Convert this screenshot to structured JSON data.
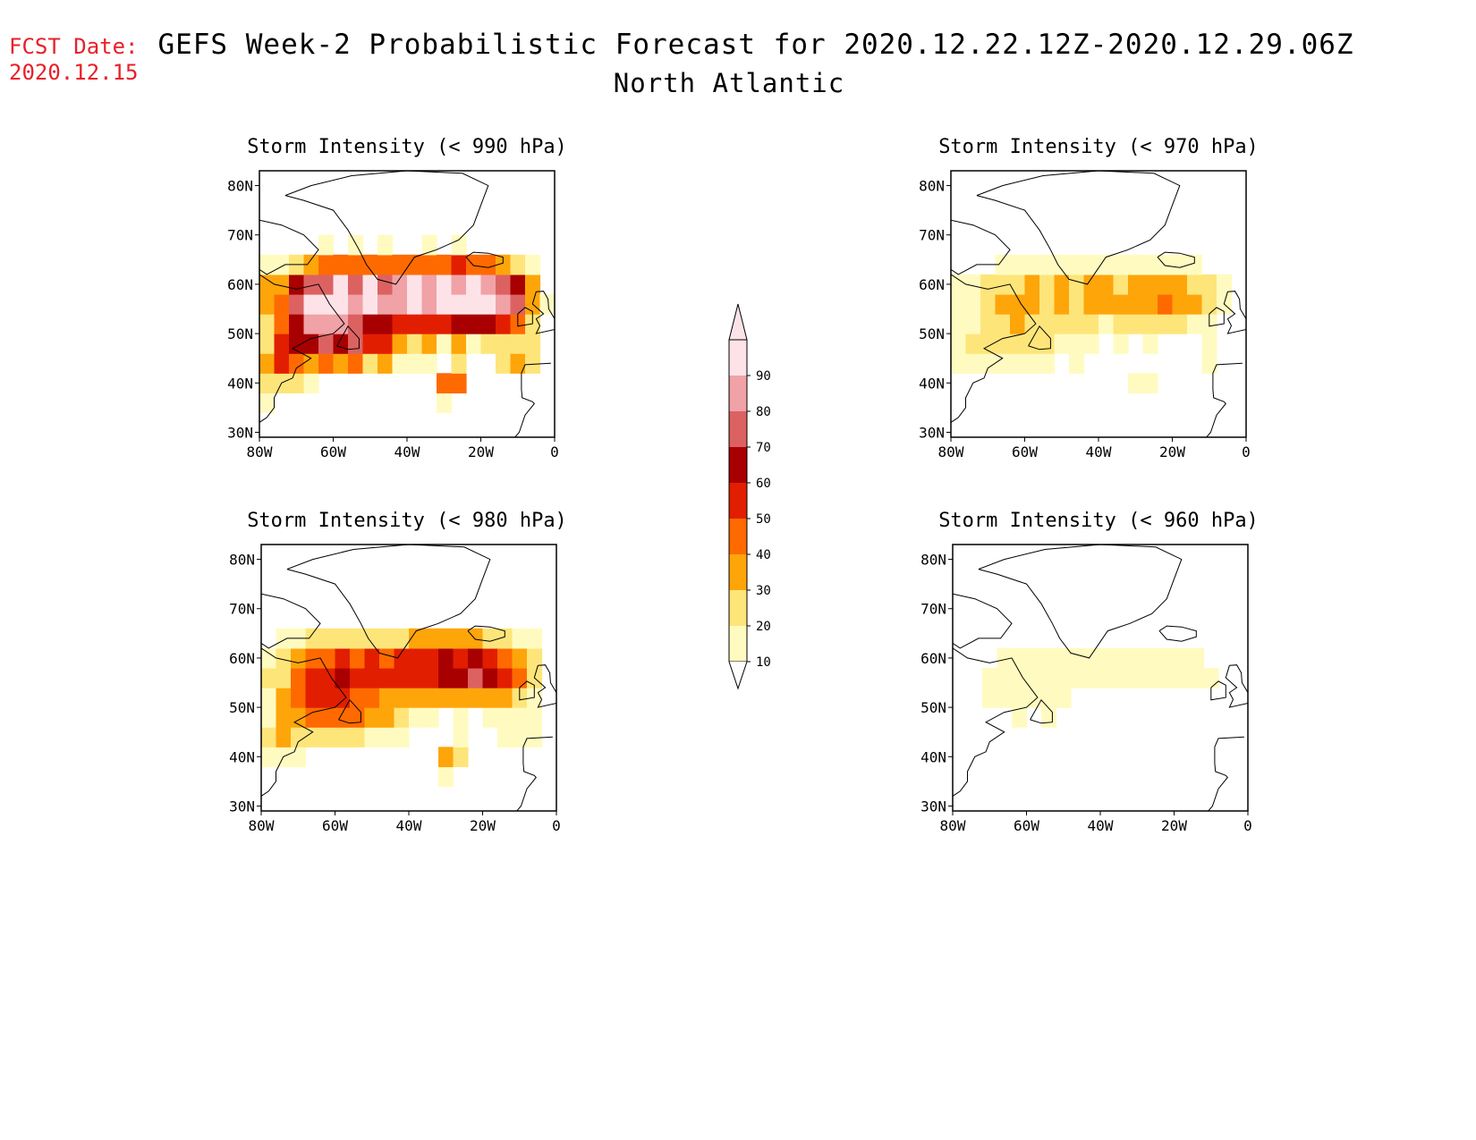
{
  "header": {
    "fcst_label": "FCST Date:",
    "fcst_date": "2020.12.15",
    "title": "GEFS Week-2 Probabilistic Forecast for 2020.12.22.12Z-2020.12.29.06Z",
    "subtitle": "North Atlantic"
  },
  "axes": {
    "lon_ticks": [
      "80W",
      "60W",
      "40W",
      "20W",
      "0"
    ],
    "lat_ticks": [
      "80N",
      "70N",
      "60N",
      "50N",
      "40N",
      "30N"
    ]
  },
  "colorbar": {
    "labels": [
      "10",
      "20",
      "30",
      "40",
      "50",
      "60",
      "70",
      "80",
      "90"
    ],
    "colors": [
      "#fffbc0",
      "#fee57a",
      "#fea50a",
      "#fe6a00",
      "#e21e00",
      "#a80000",
      "#dc6262",
      "#f0a2a6",
      "#fde3e8"
    ]
  },
  "panels": [
    {
      "id": "p990",
      "title": "Storm Intensity (< 990 hPa)",
      "intensity": 1.0
    },
    {
      "id": "p970",
      "title": "Storm Intensity (< 970 hPa)",
      "intensity": 0.35
    },
    {
      "id": "p980",
      "title": "Storm Intensity (< 980 hPa)",
      "intensity": 0.62
    },
    {
      "id": "p960",
      "title": "Storm Intensity (< 960 hPa)",
      "intensity": 0.15
    }
  ]
}
